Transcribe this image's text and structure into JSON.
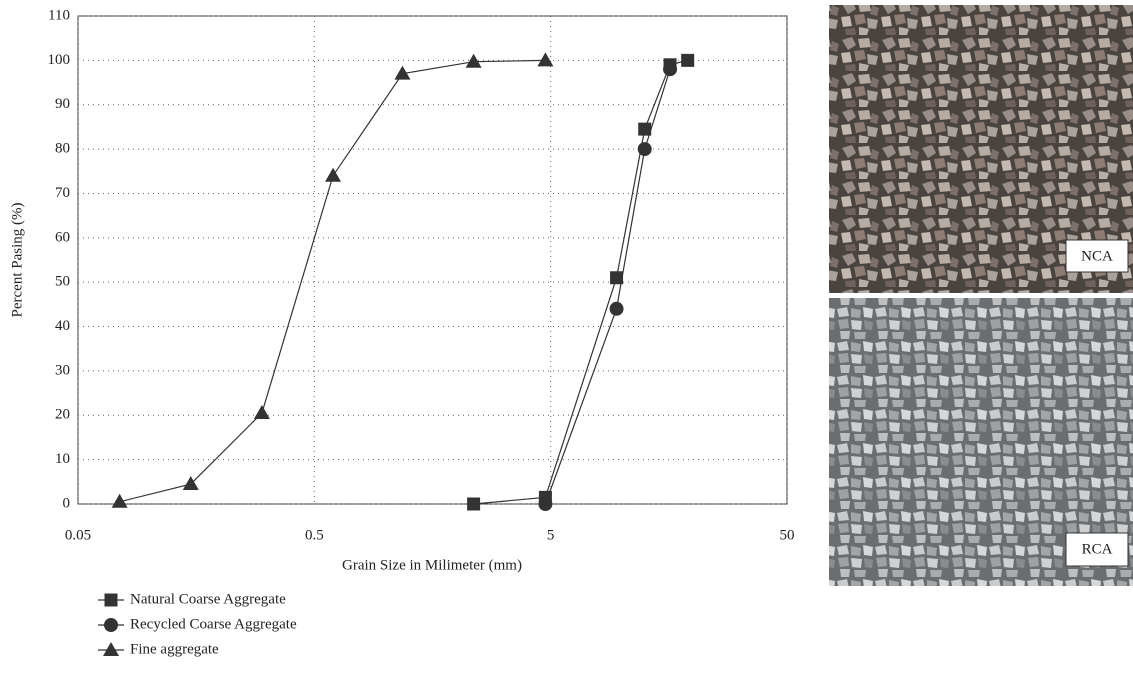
{
  "chart_data": {
    "type": "line",
    "x_log": true,
    "xlabel": "Grain Size in Milimeter (mm)",
    "ylabel": "Percent Pasing (%)",
    "xlim": [
      0.05,
      50
    ],
    "xticks": [
      0.05,
      0.5,
      5,
      50
    ],
    "ylim": [
      0,
      110
    ],
    "yticks": [
      0,
      10,
      20,
      30,
      40,
      50,
      60,
      70,
      80,
      90,
      100,
      110
    ],
    "grid": true,
    "series": [
      {
        "name": "Natural Coarse Aggregate",
        "color": "#333333",
        "marker": "square",
        "x": [
          2.36,
          4.75,
          9.5,
          12.5,
          16,
          19
        ],
        "values": [
          0,
          1.5,
          51,
          84.5,
          99,
          100
        ]
      },
      {
        "name": "Recycled Coarse Aggregate",
        "color": "#333333",
        "marker": "circle",
        "x": [
          4.75,
          9.5,
          12.5,
          16
        ],
        "values": [
          0,
          44,
          80,
          98
        ]
      },
      {
        "name": "Fine aggregate",
        "color": "#333333",
        "marker": "triangle",
        "x": [
          0.075,
          0.15,
          0.3,
          0.6,
          1.18,
          2.36,
          4.75
        ],
        "values": [
          0.5,
          4.5,
          20.5,
          74,
          97,
          99.7,
          100
        ]
      }
    ]
  },
  "photos": [
    {
      "label": "NCA"
    },
    {
      "label": "RCA"
    }
  ]
}
